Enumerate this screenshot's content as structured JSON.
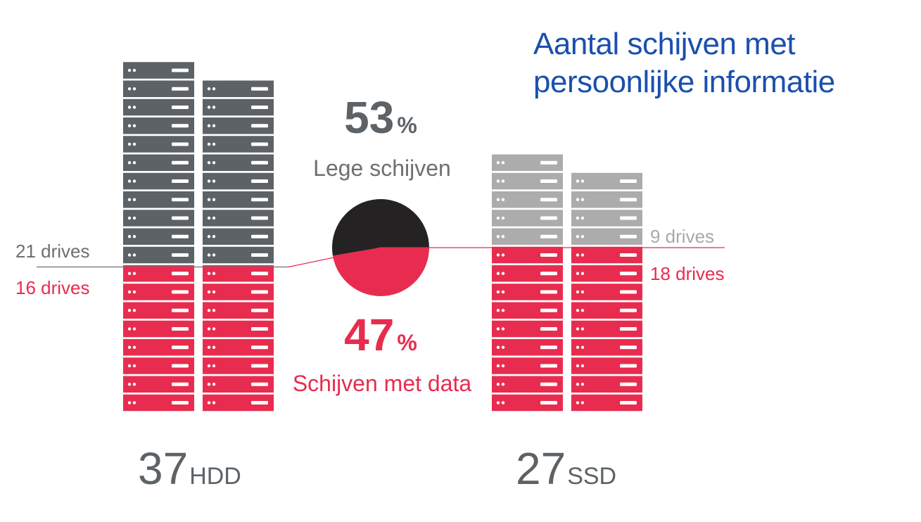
{
  "title": {
    "line1": "Aantal schijven met",
    "line2": "persoonlijke informatie"
  },
  "colors": {
    "title": "#1a4fae",
    "hdd_empty": "#5d6266",
    "ssd_empty": "#acacac",
    "with_data": "#e82c4f",
    "pie_empty": "#252224",
    "label_gray": "#6d6f71",
    "label_light": "#a7a9ab"
  },
  "chart_data": {
    "type": "pie",
    "title": "Aantal schijven met persoonlijke informatie",
    "slices": [
      {
        "label": "Lege schijven",
        "percent": 53,
        "percent_text": "53",
        "unit": "%"
      },
      {
        "label": "Schijven met data",
        "percent": 47,
        "percent_text": "47",
        "unit": "%"
      }
    ],
    "groups": [
      {
        "label": "HDD",
        "total": 37,
        "total_text": "37",
        "empty": 21,
        "empty_text": "21 drives",
        "with_data": 16,
        "with_data_text": "16 drives"
      },
      {
        "label": "SSD",
        "total": 27,
        "total_text": "27",
        "empty": 9,
        "empty_text": "9 drives",
        "with_data": 18,
        "with_data_text": "18 drives"
      }
    ]
  }
}
